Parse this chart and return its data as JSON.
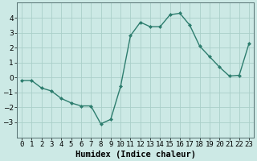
{
  "x": [
    0,
    1,
    2,
    3,
    4,
    5,
    6,
    7,
    8,
    9,
    10,
    11,
    12,
    13,
    14,
    15,
    16,
    17,
    18,
    19,
    20,
    21,
    22,
    23
  ],
  "y": [
    -0.2,
    -0.2,
    -0.7,
    -0.9,
    -1.4,
    -1.7,
    -1.9,
    -1.9,
    -3.1,
    -2.8,
    -0.6,
    2.8,
    3.7,
    3.4,
    3.4,
    4.2,
    4.3,
    3.5,
    2.1,
    1.4,
    0.7,
    0.1,
    0.15,
    2.3
  ],
  "line_color": "#2d7d6e",
  "marker": "D",
  "marker_size": 2.0,
  "bg_color": "#cce9e5",
  "grid_color": "#aacfc9",
  "xlabel": "Humidex (Indice chaleur)",
  "ylabel": "",
  "ylim": [
    -4,
    5
  ],
  "xlim": [
    -0.5,
    23.5
  ],
  "yticks": [
    -3,
    -2,
    -1,
    0,
    1,
    2,
    3,
    4
  ],
  "xtick_labels": [
    "0",
    "1",
    "2",
    "3",
    "4",
    "5",
    "6",
    "7",
    "8",
    "9",
    "10",
    "11",
    "12",
    "13",
    "14",
    "15",
    "16",
    "17",
    "18",
    "19",
    "20",
    "21",
    "22",
    "23"
  ],
  "xlabel_fontsize": 7.5,
  "tick_fontsize": 6.5,
  "linewidth": 1.0
}
